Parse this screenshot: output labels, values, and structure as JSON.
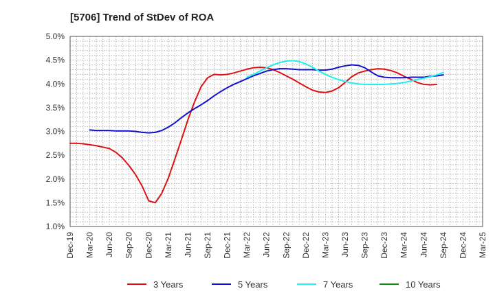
{
  "chart_data": {
    "type": "line",
    "title": "[5706]  Trend of StDev of ROA",
    "xlabel": "",
    "ylabel": "",
    "x_ticks": [
      "Dec-19",
      "Mar-20",
      "Jun-20",
      "Sep-20",
      "Dec-20",
      "Mar-21",
      "Jun-21",
      "Sep-21",
      "Dec-21",
      "Mar-22",
      "Jun-22",
      "Sep-22",
      "Dec-22",
      "Mar-23",
      "Jun-23",
      "Sep-23",
      "Dec-23",
      "Mar-24",
      "Jun-24",
      "Sep-24",
      "Dec-24",
      "Mar-25"
    ],
    "y_ticks": [
      "1.0%",
      "1.5%",
      "2.0%",
      "2.5%",
      "3.0%",
      "3.5%",
      "4.0%",
      "4.5%",
      "5.0%"
    ],
    "ylim": [
      1.0,
      5.0
    ],
    "xlim": [
      "Dec-19",
      "Mar-25"
    ],
    "grid": true,
    "legend_position": "bottom",
    "series": [
      {
        "name": "3 Years",
        "color": "#dd1111",
        "points": [
          [
            "Dec-19",
            2.75
          ],
          [
            "Jan-20",
            2.75
          ],
          [
            "Feb-20",
            2.74
          ],
          [
            "Mar-20",
            2.72
          ],
          [
            "Apr-20",
            2.7
          ],
          [
            "May-20",
            2.67
          ],
          [
            "Jun-20",
            2.64
          ],
          [
            "Jul-20",
            2.56
          ],
          [
            "Aug-20",
            2.44
          ],
          [
            "Sep-20",
            2.28
          ],
          [
            "Oct-20",
            2.09
          ],
          [
            "Nov-20",
            1.85
          ],
          [
            "Dec-20",
            1.54
          ],
          [
            "Jan-21",
            1.5
          ],
          [
            "Feb-21",
            1.7
          ],
          [
            "Mar-21",
            2.02
          ],
          [
            "Apr-21",
            2.42
          ],
          [
            "May-21",
            2.83
          ],
          [
            "Jun-21",
            3.25
          ],
          [
            "Jul-21",
            3.62
          ],
          [
            "Aug-21",
            3.94
          ],
          [
            "Sep-21",
            4.13
          ],
          [
            "Oct-21",
            4.2
          ],
          [
            "Nov-21",
            4.19
          ],
          [
            "Dec-21",
            4.2
          ],
          [
            "Jan-22",
            4.23
          ],
          [
            "Feb-22",
            4.27
          ],
          [
            "Mar-22",
            4.31
          ],
          [
            "Apr-22",
            4.34
          ],
          [
            "May-22",
            4.35
          ],
          [
            "Jun-22",
            4.34
          ],
          [
            "Jul-22",
            4.3
          ],
          [
            "Aug-22",
            4.24
          ],
          [
            "Sep-22",
            4.17
          ],
          [
            "Oct-22",
            4.1
          ],
          [
            "Nov-22",
            4.02
          ],
          [
            "Dec-22",
            3.94
          ],
          [
            "Jan-23",
            3.87
          ],
          [
            "Feb-23",
            3.83
          ],
          [
            "Mar-23",
            3.82
          ],
          [
            "Apr-23",
            3.85
          ],
          [
            "May-23",
            3.92
          ],
          [
            "Jun-23",
            4.03
          ],
          [
            "Jul-23",
            4.15
          ],
          [
            "Aug-23",
            4.23
          ],
          [
            "Sep-23",
            4.27
          ],
          [
            "Oct-23",
            4.3
          ],
          [
            "Nov-23",
            4.32
          ],
          [
            "Dec-23",
            4.31
          ],
          [
            "Jan-24",
            4.28
          ],
          [
            "Feb-24",
            4.23
          ],
          [
            "Mar-24",
            4.16
          ],
          [
            "Apr-24",
            4.1
          ],
          [
            "May-24",
            4.03
          ],
          [
            "Jun-24",
            3.99
          ],
          [
            "Jul-24",
            3.98
          ],
          [
            "Aug-24",
            3.99
          ]
        ]
      },
      {
        "name": "5 Years",
        "color": "#1111cc",
        "points": [
          [
            "Mar-20",
            3.03
          ],
          [
            "Apr-20",
            3.02
          ],
          [
            "May-20",
            3.02
          ],
          [
            "Jun-20",
            3.02
          ],
          [
            "Jul-20",
            3.01
          ],
          [
            "Aug-20",
            3.01
          ],
          [
            "Sep-20",
            3.01
          ],
          [
            "Oct-20",
            3.0
          ],
          [
            "Nov-20",
            2.98
          ],
          [
            "Dec-20",
            2.97
          ],
          [
            "Jan-21",
            2.98
          ],
          [
            "Feb-21",
            3.02
          ],
          [
            "Mar-21",
            3.09
          ],
          [
            "Apr-21",
            3.18
          ],
          [
            "May-21",
            3.29
          ],
          [
            "Jun-21",
            3.39
          ],
          [
            "Jul-21",
            3.48
          ],
          [
            "Aug-21",
            3.56
          ],
          [
            "Sep-21",
            3.65
          ],
          [
            "Oct-21",
            3.75
          ],
          [
            "Nov-21",
            3.84
          ],
          [
            "Dec-21",
            3.92
          ],
          [
            "Jan-22",
            3.99
          ],
          [
            "Feb-22",
            4.05
          ],
          [
            "Mar-22",
            4.11
          ],
          [
            "Apr-22",
            4.17
          ],
          [
            "May-22",
            4.22
          ],
          [
            "Jun-22",
            4.27
          ],
          [
            "Jul-22",
            4.3
          ],
          [
            "Aug-22",
            4.32
          ],
          [
            "Sep-22",
            4.32
          ],
          [
            "Oct-22",
            4.31
          ],
          [
            "Nov-22",
            4.3
          ],
          [
            "Dec-22",
            4.3
          ],
          [
            "Jan-23",
            4.3
          ],
          [
            "Feb-23",
            4.29
          ],
          [
            "Mar-23",
            4.29
          ],
          [
            "Apr-23",
            4.31
          ],
          [
            "May-23",
            4.35
          ],
          [
            "Jun-23",
            4.38
          ],
          [
            "Jul-23",
            4.4
          ],
          [
            "Aug-23",
            4.39
          ],
          [
            "Sep-23",
            4.34
          ],
          [
            "Oct-23",
            4.25
          ],
          [
            "Nov-23",
            4.17
          ],
          [
            "Dec-23",
            4.14
          ],
          [
            "Jan-24",
            4.13
          ],
          [
            "Feb-24",
            4.13
          ],
          [
            "Mar-24",
            4.13
          ],
          [
            "Apr-24",
            4.14
          ],
          [
            "May-24",
            4.14
          ],
          [
            "Jun-24",
            4.14
          ],
          [
            "Jul-24",
            4.16
          ],
          [
            "Aug-24",
            4.17
          ],
          [
            "Sep-24",
            4.19
          ]
        ]
      },
      {
        "name": "7 Years",
        "color": "#22eeee",
        "points": [
          [
            "Mar-22",
            4.14
          ],
          [
            "Apr-22",
            4.2
          ],
          [
            "May-22",
            4.27
          ],
          [
            "Jun-22",
            4.34
          ],
          [
            "Jul-22",
            4.4
          ],
          [
            "Aug-22",
            4.45
          ],
          [
            "Sep-22",
            4.48
          ],
          [
            "Oct-22",
            4.49
          ],
          [
            "Nov-22",
            4.47
          ],
          [
            "Dec-22",
            4.42
          ],
          [
            "Jan-23",
            4.35
          ],
          [
            "Feb-23",
            4.27
          ],
          [
            "Mar-23",
            4.2
          ],
          [
            "Apr-23",
            4.14
          ],
          [
            "May-23",
            4.09
          ],
          [
            "Jun-23",
            4.05
          ],
          [
            "Jul-23",
            4.02
          ],
          [
            "Aug-23",
            4.0
          ],
          [
            "Sep-23",
            3.99
          ],
          [
            "Oct-23",
            3.99
          ],
          [
            "Nov-23",
            3.99
          ],
          [
            "Dec-23",
            3.99
          ],
          [
            "Jan-24",
            4.0
          ],
          [
            "Feb-24",
            4.01
          ],
          [
            "Mar-24",
            4.03
          ],
          [
            "Apr-24",
            4.06
          ],
          [
            "May-24",
            4.09
          ],
          [
            "Jun-24",
            4.12
          ],
          [
            "Jul-24",
            4.15
          ],
          [
            "Aug-24",
            4.19
          ],
          [
            "Sep-24",
            4.24
          ]
        ]
      },
      {
        "name": "10 Years",
        "color": "#118811",
        "points": []
      }
    ]
  }
}
